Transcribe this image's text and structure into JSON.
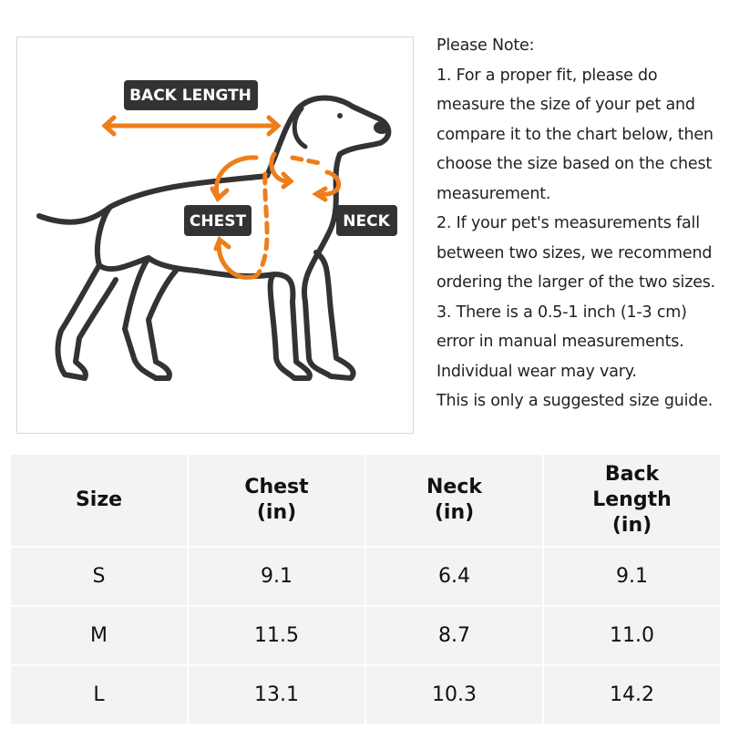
{
  "diagram": {
    "labels": {
      "back_length": "BACK LENGTH",
      "chest": "CHEST",
      "neck": "NECK"
    }
  },
  "notes": [
    "Please Note:",
    "1. For a proper fit, please do measure the size of your pet and compare it to the chart below, then choose the size based on the chest measurement.",
    "2. If your pet's measurements fall between two sizes, we recommend ordering the larger of the two sizes.",
    "3. There is a 0.5-1 inch (1-3 cm) error in manual measurements. Individual wear may vary.",
    "This is only a suggested size guide."
  ],
  "table": {
    "header": [
      [
        "Size"
      ],
      [
        "Chest",
        "(in)"
      ],
      [
        "Neck",
        "(in)"
      ],
      [
        "Back",
        "Length",
        "(in)"
      ]
    ],
    "rows": [
      [
        "S",
        "9.1",
        "6.4",
        "9.1"
      ],
      [
        "M",
        "11.5",
        "8.7",
        "11.0"
      ],
      [
        "L",
        "13.1",
        "10.3",
        "14.2"
      ]
    ]
  }
}
